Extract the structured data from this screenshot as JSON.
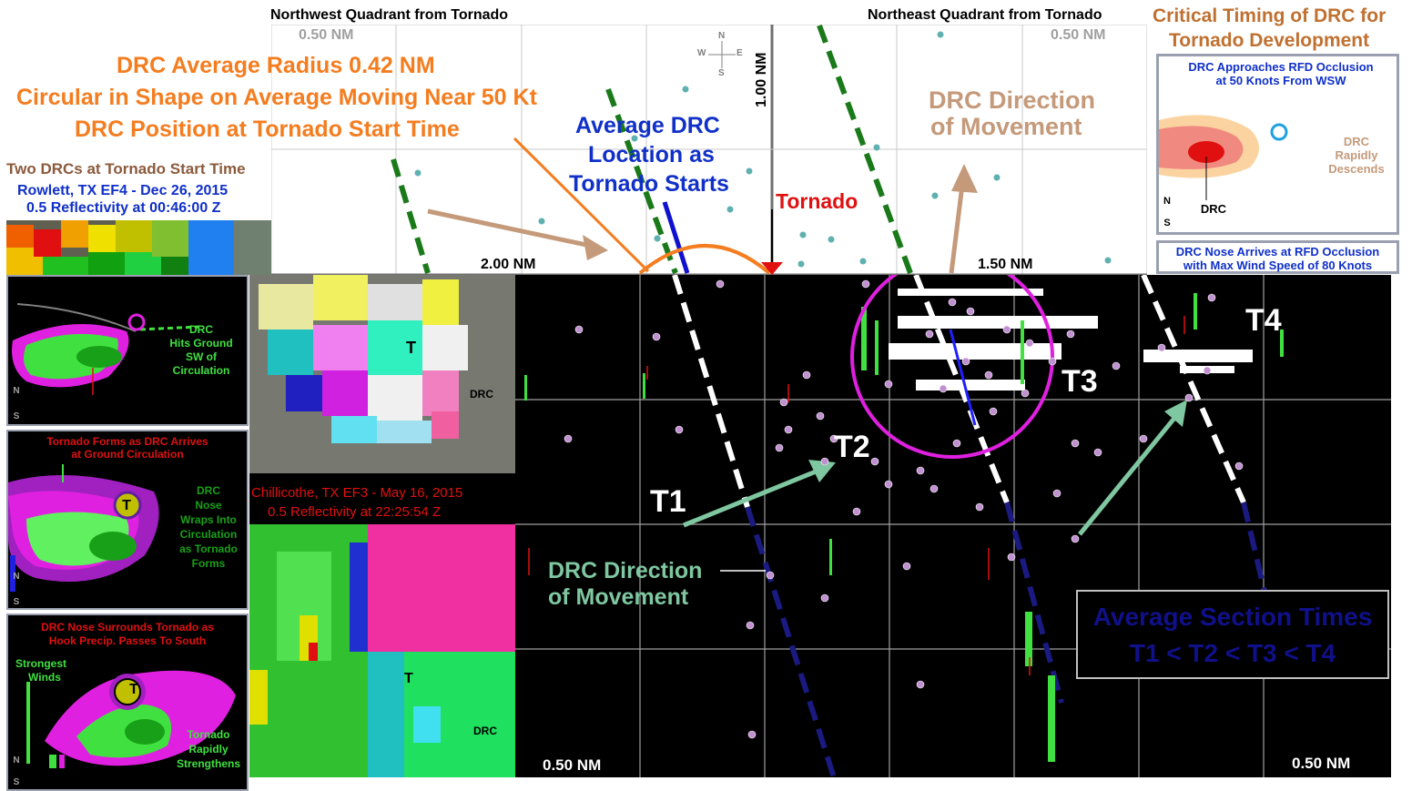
{
  "top": {
    "nw_header": "Northwest Quadrant from Tornado",
    "ne_header": "Northeast Quadrant from Tornado",
    "critical_title_1": "Critical Timing of DRC for",
    "critical_title_2": "Tornado Development",
    "radius_line": "DRC Average Radius 0.42 NM",
    "circular_line": "Circular in Shape on Average Moving Near 50 Kt",
    "position_line": "DRC Position at Tornado Start Time",
    "avg_loc_1": "Average DRC",
    "avg_loc_2": "Location as",
    "avg_loc_3": "Tornado Starts",
    "tornado_label": "Tornado",
    "dir_1": "DRC Direction",
    "dir_2": "of Movement",
    "nm_050_left": "0.50 NM",
    "nm_050_right": "0.50 NM",
    "nm_100": "1.00 NM",
    "nm_200": "2.00 NM",
    "nm_150": "1.50 NM",
    "compass_n": "N",
    "compass_s": "S",
    "compass_e": "E",
    "compass_w": "W"
  },
  "rowlett": {
    "title": "Two DRCs at Tornado Start Time",
    "line1": "Rowlett, TX EF4 - Dec 26, 2015",
    "line2": "0.5 Reflectivity at 00:46:00 Z"
  },
  "timing": {
    "box1_title_1": "DRC Approaches RFD Occlusion",
    "box1_title_2": "at 50 Knots From WSW",
    "box1_rapid_1": "DRC",
    "box1_rapid_2": "Rapidly",
    "box1_rapid_3": "Descends",
    "box1_drc": "DRC",
    "box1_n": "N",
    "box1_s": "S",
    "box2_title_1": "DRC Nose Arrives at RFD Occlusion",
    "box2_title_2": "with Max Wind Speed of 80 Knots"
  },
  "stages": {
    "s1_1": "DRC",
    "s1_2": "Hits Ground",
    "s1_3": "SW of",
    "s1_4": "Circulation",
    "s2_title_1": "Tornado Forms as DRC Arrives",
    "s2_title_2": "at Ground Circulation",
    "s2_1": "DRC",
    "s2_2": "Nose",
    "s2_3": "Wraps Into",
    "s2_4": "Circulation",
    "s2_5": "as Tornado",
    "s2_6": "Forms",
    "s3_title_1": "DRC Nose Surrounds Tornado as",
    "s3_title_2": "Hook Precip. Passes To South",
    "s3_strong_1": "Strongest",
    "s3_strong_2": "Winds",
    "s3_rapid_1": "Tornado",
    "s3_rapid_2": "Rapidly",
    "s3_rapid_3": "Strengthens",
    "t_letter": "T",
    "n": "N",
    "s": "S"
  },
  "chillicothe": {
    "line1": "Chillicothe, TX EF3 - May 16, 2015",
    "line2": "0.5 Reflectivity at 22:25:54 Z",
    "t_marker": "T",
    "drc_marker": "DRC"
  },
  "main": {
    "t1": "T1",
    "t2": "T2",
    "t3": "T3",
    "t4": "T4",
    "dir_1": "DRC Direction",
    "dir_2": "of Movement",
    "avg_1": "Average Section Times",
    "avg_2": "T1 < T2 < T3 < T4",
    "nm_left": "0.50 NM",
    "nm_right": "0.50 NM"
  },
  "colors": {
    "orange": "#f47d20",
    "brown": "#c49a7a",
    "dark_green_dash": "#1a7a1a",
    "avg_blue": "#1010d0",
    "mint_arrow": "#7fc7a0",
    "magenta": "#e020e0"
  }
}
